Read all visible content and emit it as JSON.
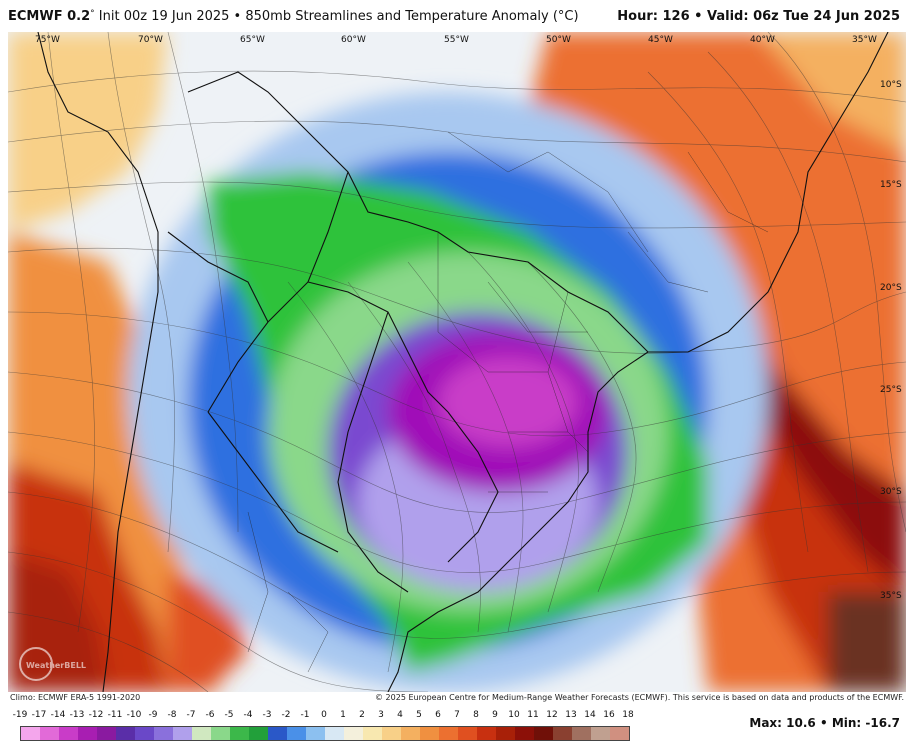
{
  "header": {
    "model": "ECMWF 0.2",
    "degree": "°",
    "init": "Init 00z 19 Jun 2025",
    "bullet": "•",
    "product": "850mb Streamlines and Temperature Anomaly (°C)",
    "hour_label": "Hour:",
    "hour_value": "126",
    "valid_label": "Valid:",
    "valid_value": "06z Tue 24 Jun 2025"
  },
  "map": {
    "lon_labels": [
      "75°W",
      "70°W",
      "65°W",
      "60°W",
      "55°W",
      "50°W",
      "45°W",
      "40°W",
      "35°W"
    ],
    "lat_labels": [
      "10°S",
      "15°S",
      "20°S",
      "25°S",
      "30°S",
      "35°S"
    ],
    "watermark": "WeatherBELL",
    "colors": {
      "cold_max": "#a010b8",
      "purple": "#7a4ad0",
      "blue": "#2f6fe0",
      "light_blue": "#a8c8f0",
      "green": "#2fc23a",
      "warm": "#e8602a",
      "hot": "#b82008",
      "neutral": "#eef2f6"
    }
  },
  "footer": {
    "climo": "Climo: ECMWF ERA-5 1991-2020",
    "copyright": "© 2025 European Centre for Medium-Range Weather Forecasts (ECMWF). This service is based on data and products of the ECMWF."
  },
  "legend": {
    "labels": [
      "-19",
      "-17",
      "-14",
      "-13",
      "-12",
      "-11",
      "-10",
      "-9",
      "-8",
      "-7",
      "-6",
      "-5",
      "-4",
      "-3",
      "-2",
      "-1",
      "0",
      "1",
      "2",
      "3",
      "4",
      "5",
      "6",
      "7",
      "8",
      "9",
      "10",
      "11",
      "12",
      "13",
      "14",
      "16",
      "18"
    ],
    "colors": [
      "#f4a6ec",
      "#e26ad8",
      "#c93cc8",
      "#a81eb2",
      "#8a1aa0",
      "#5a2ea8",
      "#6a48c8",
      "#8a70dc",
      "#b0a0ec",
      "#d0e8c0",
      "#8ad88a",
      "#3cb84a",
      "#22a03a",
      "#2a58c8",
      "#4a90e8",
      "#8cc0f0",
      "#d8e8f4",
      "#f4f0dc",
      "#f8e8b0",
      "#f8d088",
      "#f4b060",
      "#f09040",
      "#ec7030",
      "#e05020",
      "#c83010",
      "#a82008",
      "#8c1008",
      "#701008",
      "#8a4030",
      "#a07060",
      "#c0a090",
      "#d09080"
    ],
    "max_label": "Max:",
    "max_value": "10.6",
    "min_label": "Min:",
    "min_value": "-16.7"
  }
}
